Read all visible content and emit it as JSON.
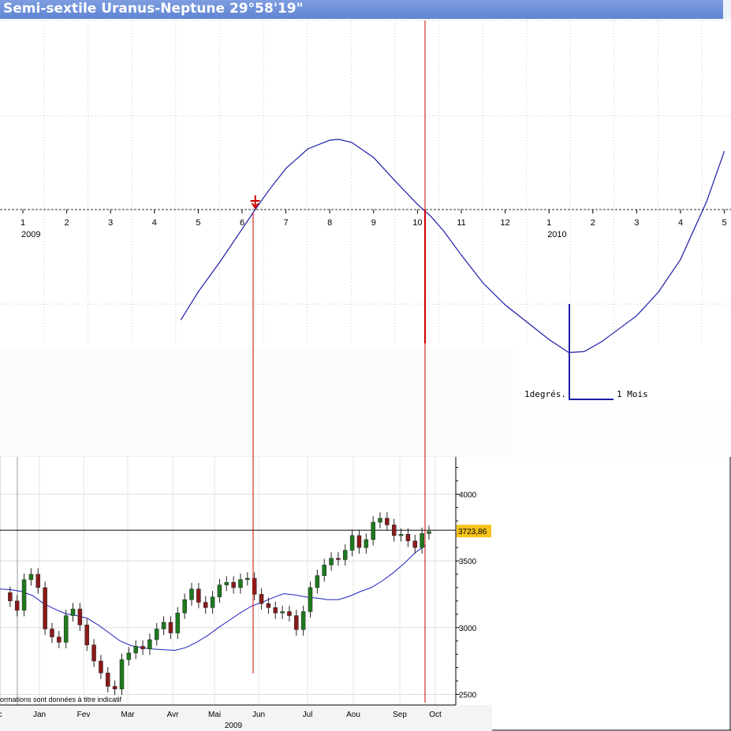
{
  "window": {
    "title": "Semi-sextile Uranus-Neptune  29°58'19\""
  },
  "chart_data": [
    {
      "type": "line",
      "name": "astro_cycle",
      "x_ticks": [
        "1",
        "2",
        "3",
        "4",
        "5",
        "6",
        "7",
        "8",
        "9",
        "10",
        "11",
        "12",
        "1",
        "2",
        "3",
        "4",
        "5"
      ],
      "year_labels": [
        {
          "after_tick_index": 0,
          "label": "2009"
        },
        {
          "after_tick_index": 12,
          "label": "2010"
        }
      ],
      "x_range_months": [
        0.6,
        17.0
      ],
      "series": [
        {
          "color": "#1c1ca8",
          "x": [
            4.6,
            5.0,
            5.5,
            6.0,
            6.3,
            6.6,
            7.0,
            7.5,
            8.0,
            8.2,
            8.5,
            9.0,
            9.5,
            10.0,
            10.3,
            10.6,
            11.0,
            11.5,
            12.0,
            12.5,
            13.0,
            13.45,
            13.8,
            14.2,
            14.6,
            15.0,
            15.5,
            16.0,
            16.6,
            17.0
          ],
          "y": [
            -2.55,
            -1.9,
            -1.2,
            -0.45,
            0.0,
            0.43,
            0.95,
            1.4,
            1.6,
            1.62,
            1.55,
            1.2,
            0.65,
            0.12,
            -0.15,
            -0.5,
            -1.05,
            -1.7,
            -2.2,
            -2.6,
            -3.0,
            -3.3,
            -3.28,
            -3.05,
            -2.75,
            -2.45,
            -1.9,
            -1.15,
            0.2,
            1.35
          ]
        }
      ],
      "ylim": [
        -3.8,
        4.5
      ],
      "markers": [
        {
          "x": 6.3,
          "y": 0.0,
          "symbol": "arrow-down",
          "color": "#cc0000"
        }
      ],
      "scale_legend": {
        "vertical": "1degrés.",
        "horizontal": "1 Mois"
      }
    },
    {
      "type": "candlestick",
      "name": "stock_index",
      "x_labels": [
        "c",
        "Jan",
        "Fev",
        "Mar",
        "Avr",
        "Mai",
        "Jun",
        "Jul",
        "Aou",
        "Sep",
        "Oct"
      ],
      "x_title": "2009",
      "y_ticks": [
        2500,
        3000,
        3500,
        4000
      ],
      "ylim": [
        2420,
        4280
      ],
      "last_value": "3723,86",
      "reference_level": 3730,
      "note": "ormations sont données à titre indicatif",
      "moving_average": {
        "color": "#2020c0",
        "values": [
          3290,
          3285,
          3270,
          3240,
          3180,
          3140,
          3105,
          3090,
          3070,
          3020,
          2960,
          2900,
          2865,
          2850,
          2840,
          2835,
          2830,
          2850,
          2890,
          2940,
          3000,
          3055,
          3110,
          3160,
          3190,
          3225,
          3255,
          3245,
          3230,
          3222,
          3210,
          3210,
          3235,
          3270,
          3300,
          3350,
          3410,
          3480,
          3560,
          3620
        ]
      },
      "candles": [
        3262,
        3200,
        3130,
        3360,
        3400,
        3300,
        2990,
        2930,
        2890,
        3090,
        3140,
        3020,
        2870,
        2750,
        2660,
        2560,
        2540,
        2760,
        2810,
        2860,
        2840,
        2910,
        2990,
        3040,
        2960,
        3110,
        3210,
        3290,
        3190,
        3150,
        3230,
        3320,
        3340,
        3300,
        3360,
        3370,
        3250,
        3180,
        3150,
        3110,
        3120,
        3090,
        2985,
        3120,
        3300,
        3390,
        3470,
        3520,
        3510,
        3580,
        3690,
        3600,
        3660,
        3790,
        3820,
        3770,
        3690,
        3700,
        3650,
        3600,
        3705,
        3720
      ]
    }
  ]
}
